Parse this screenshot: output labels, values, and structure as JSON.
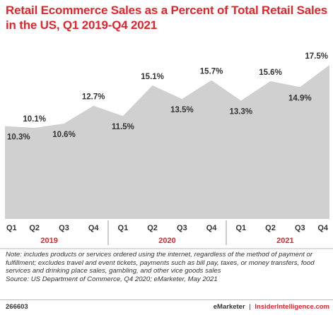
{
  "header": {
    "title": "Retail Ecommerce Sales as a Percent of Total Retail Sales in the US, Q1 2019-Q4 2021"
  },
  "chart_data": {
    "type": "area",
    "title": "Retail Ecommerce Sales as a Percent of Total Retail Sales in the US, Q1 2019-Q4 2021",
    "categories": [
      "Q1",
      "Q2",
      "Q3",
      "Q4",
      "Q1",
      "Q2",
      "Q3",
      "Q4",
      "Q1",
      "Q2",
      "Q3",
      "Q4"
    ],
    "years": [
      {
        "label": "2019",
        "quarters": 4
      },
      {
        "label": "2020",
        "quarters": 4
      },
      {
        "label": "2021",
        "quarters": 4
      }
    ],
    "values": [
      10.3,
      10.1,
      10.6,
      12.7,
      11.5,
      15.1,
      13.5,
      15.7,
      13.3,
      15.6,
      14.9,
      17.5
    ],
    "data_labels": [
      "10.3%",
      "10.1%",
      "10.6%",
      "12.7%",
      "11.5%",
      "15.1%",
      "13.5%",
      "15.7%",
      "13.3%",
      "15.6%",
      "14.9%",
      "17.5%"
    ],
    "label_position": [
      "below",
      "above",
      "below",
      "above",
      "below",
      "above",
      "below",
      "above",
      "below",
      "above",
      "below",
      "above"
    ],
    "ylim": [
      0,
      18
    ],
    "grid": false,
    "colors": {
      "area": "#d0d0d0",
      "year_label": "#e3252b",
      "label": "#333333"
    }
  },
  "footer": {
    "note": "Note: includes products or services ordered using the internet, regardless of the method of payment or fulfillment; excludes travel and event tickets, payments such as bill pay, taxes, or money transfers, food services and drinking place sales, gambling, and other vice goods sales",
    "source": "Source: US Department of Commerce, Q4 2020; eMarketer, May 2021",
    "chart_id": "266603",
    "brand": "eMarketer",
    "separator": "|",
    "brand2": "InsiderIntelligence.com"
  }
}
